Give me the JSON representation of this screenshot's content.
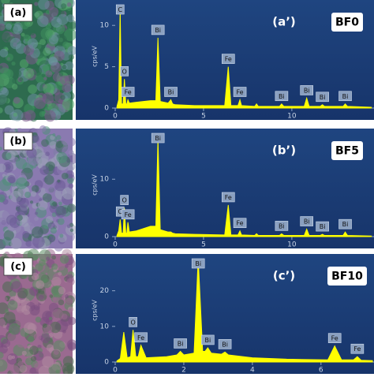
{
  "image_panels": [
    {
      "label": "(a)"
    },
    {
      "label": "(b)"
    },
    {
      "label": "(c)"
    }
  ],
  "chart_data": [
    {
      "type": "spectrum",
      "subtitle": "(a’)",
      "title": "BF0",
      "y_label": "cps/eV",
      "color": "#ffff00",
      "x": [
        0.1,
        0.2,
        0.28,
        0.36,
        0.45,
        0.52,
        0.6,
        0.66,
        0.72,
        0.8,
        1.2,
        2.0,
        2.3,
        2.42,
        2.55,
        3.0,
        3.15,
        3.25,
        3.4,
        4.5,
        6.2,
        6.4,
        6.55,
        6.95,
        7.06,
        7.15,
        7.9,
        8.0,
        8.1,
        9.3,
        9.42,
        9.55,
        10.7,
        10.84,
        10.98,
        11.6,
        11.73,
        11.85,
        12.9,
        13.02,
        13.15,
        14.5
      ],
      "values": [
        0.2,
        1,
        12,
        0.5,
        0.5,
        3.5,
        0.5,
        0.5,
        1,
        0.6,
        0.7,
        0.9,
        0.9,
        8.5,
        0.8,
        0.6,
        1,
        0.5,
        0.4,
        0.3,
        0.3,
        5,
        0.3,
        0.3,
        1,
        0.3,
        0.2,
        0.5,
        0.2,
        0.2,
        0.5,
        0.2,
        0.2,
        1.2,
        0.2,
        0.2,
        0.4,
        0.2,
        0.2,
        0.5,
        0.2,
        0.1
      ],
      "xlim": [
        0,
        14.65
      ],
      "ylim": [
        0,
        12.5
      ],
      "xticks": [
        0,
        5,
        10
      ],
      "yticks": [
        0,
        5,
        10
      ],
      "annotations": [
        {
          "text": "C",
          "x": 0.28
        },
        {
          "text": "O",
          "x": 0.52
        },
        {
          "text": "Fe",
          "x": 0.72
        },
        {
          "text": "Bi",
          "x": 2.42
        },
        {
          "text": "Bi",
          "x": 3.15
        },
        {
          "text": "Fe",
          "x": 6.4
        },
        {
          "text": "Fe",
          "x": 7.06
        },
        {
          "text": "Bi",
          "x": 9.42
        },
        {
          "text": "Bi",
          "x": 10.84
        },
        {
          "text": "Bi",
          "x": 11.73
        },
        {
          "text": "Bi",
          "x": 13.02
        }
      ]
    },
    {
      "type": "spectrum",
      "subtitle": "(b’)",
      "title": "BF5",
      "y_label": "cps/eV",
      "color": "#ffff00",
      "x": [
        0.1,
        0.2,
        0.28,
        0.36,
        0.45,
        0.52,
        0.6,
        0.66,
        0.72,
        0.8,
        1.2,
        2.0,
        2.3,
        2.42,
        2.55,
        3.0,
        3.15,
        3.25,
        3.4,
        4.5,
        6.2,
        6.4,
        6.55,
        6.95,
        7.06,
        7.15,
        7.9,
        8.0,
        8.1,
        9.3,
        9.42,
        9.55,
        10.7,
        10.84,
        10.98,
        11.6,
        11.73,
        11.85,
        12.9,
        13.02,
        13.15,
        14.5
      ],
      "values": [
        0.2,
        1,
        3,
        0.6,
        0.6,
        5,
        0.6,
        0.6,
        2.5,
        0.8,
        1,
        1.8,
        1.8,
        17,
        1.2,
        0.8,
        0.8,
        0.6,
        0.5,
        0.4,
        0.3,
        5.5,
        0.3,
        0.3,
        1,
        0.3,
        0.2,
        0.5,
        0.2,
        0.2,
        0.5,
        0.2,
        0.2,
        1.3,
        0.2,
        0.2,
        0.4,
        0.2,
        0.2,
        0.8,
        0.2,
        0.1
      ],
      "xlim": [
        0,
        14.65
      ],
      "ylim": [
        0,
        18
      ],
      "xticks": [
        0,
        5,
        10
      ],
      "yticks": [
        0,
        10
      ],
      "annotations": [
        {
          "text": "C",
          "x": 0.28
        },
        {
          "text": "O",
          "x": 0.52
        },
        {
          "text": "Fe",
          "x": 0.72
        },
        {
          "text": "Bi",
          "x": 2.42
        },
        {
          "text": "Fe",
          "x": 6.4
        },
        {
          "text": "Fe",
          "x": 7.06
        },
        {
          "text": "Bi",
          "x": 9.42
        },
        {
          "text": "Bi",
          "x": 10.84
        },
        {
          "text": "Bi",
          "x": 11.73
        },
        {
          "text": "Bi",
          "x": 13.02
        }
      ]
    },
    {
      "type": "spectrum",
      "subtitle": "(c’)",
      "title": "BF10",
      "y_label": "cps/eV",
      "color": "#ffff00",
      "x": [
        0.05,
        0.15,
        0.25,
        0.35,
        0.45,
        0.52,
        0.6,
        0.67,
        0.75,
        0.9,
        1.5,
        1.8,
        1.9,
        2.0,
        2.3,
        2.42,
        2.55,
        2.62,
        2.7,
        2.8,
        3.1,
        3.2,
        3.3,
        4.0,
        5.0,
        6.2,
        6.4,
        6.6,
        6.95,
        7.06,
        7.17,
        7.5
      ],
      "values": [
        0.3,
        1,
        8.4,
        1.2,
        1.5,
        9,
        1.5,
        1.5,
        4.7,
        1.2,
        1.5,
        2,
        3,
        2,
        2.5,
        29,
        3,
        3,
        4,
        2.5,
        2.2,
        2.8,
        2,
        1.2,
        0.8,
        0.6,
        4.5,
        0.6,
        0.6,
        1.5,
        0.5,
        0.4
      ],
      "xlim": [
        0,
        7.5
      ],
      "ylim": [
        0,
        29
      ],
      "xticks": [
        0,
        2,
        4,
        6
      ],
      "yticks": [
        0,
        10,
        20
      ],
      "annotations": [
        {
          "text": "O",
          "x": 0.52
        },
        {
          "text": "Fe",
          "x": 0.75
        },
        {
          "text": "Bi",
          "x": 1.9
        },
        {
          "text": "Bi",
          "x": 2.42
        },
        {
          "text": "Bi",
          "x": 2.7
        },
        {
          "text": "Bi",
          "x": 3.2
        },
        {
          "text": "Fe",
          "x": 6.4
        },
        {
          "text": "Fe",
          "x": 7.06
        }
      ]
    }
  ]
}
